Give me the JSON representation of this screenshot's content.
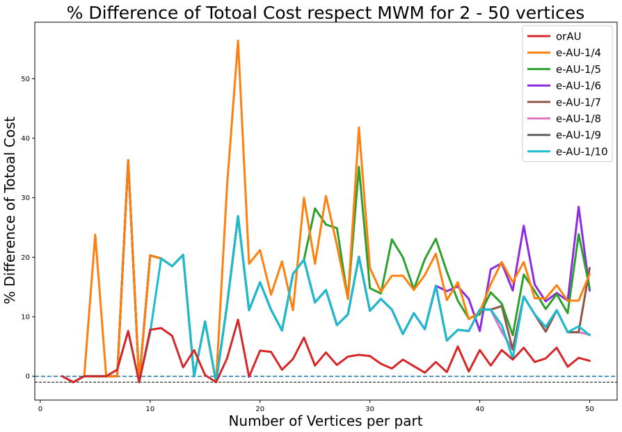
{
  "chart_data": {
    "type": "line",
    "title": "% Difference of Totoal Cost respect MWM for 2 - 50 vertices",
    "xlabel": "Number of Vertices per part",
    "ylabel": "% Difference of Totoal Cost",
    "xlim": [
      -0.5,
      52.5
    ],
    "ylim": [
      -4,
      59.5
    ],
    "xticks": [
      0,
      10,
      20,
      30,
      40,
      50
    ],
    "yticks": [
      0,
      10,
      20,
      30,
      40,
      50
    ],
    "grid": false,
    "legend_position": "top-right",
    "reference_lines": [
      {
        "y": 0,
        "style": "dashed",
        "color": "#1f77b4"
      },
      {
        "y": -1,
        "style": "dashed",
        "color": "#000000"
      }
    ],
    "x": [
      2,
      3,
      4,
      5,
      6,
      7,
      8,
      9,
      10,
      11,
      12,
      13,
      14,
      15,
      16,
      17,
      18,
      19,
      20,
      21,
      22,
      23,
      24,
      25,
      26,
      27,
      28,
      29,
      30,
      31,
      32,
      33,
      34,
      35,
      36,
      37,
      38,
      39,
      40,
      41,
      42,
      43,
      44,
      45,
      46,
      47,
      48,
      49,
      50
    ],
    "series": [
      {
        "name": "e-AU-1/9",
        "color": "#616161",
        "values": [
          0,
          -1,
          0,
          0,
          0,
          0,
          36.3,
          -1,
          20.3,
          19.8,
          18.5,
          20.4,
          0,
          9.2,
          -1,
          12,
          26.9,
          11.1,
          15.8,
          11.2,
          7.7,
          17.2,
          19.6,
          12.4,
          14.5,
          8.6,
          10.4,
          20.1,
          11,
          13,
          11.2,
          7.1,
          10.6,
          7.9,
          15.2,
          6,
          7.8,
          7.6,
          11.2,
          11.2,
          7.5,
          4.5,
          13.4,
          10.4,
          7.5,
          11.1,
          7.4,
          7.4,
          7
        ]
      },
      {
        "name": "e-AU-1/8",
        "color": "#e377c2",
        "values": [
          0,
          -1,
          0,
          0,
          0,
          0,
          36.3,
          -1,
          20.3,
          19.8,
          18.5,
          20.4,
          0,
          9.2,
          -1,
          12,
          26.9,
          11.1,
          15.8,
          11.2,
          7.7,
          17.2,
          19.6,
          12.4,
          14.5,
          8.6,
          10.4,
          20.1,
          11,
          13,
          11.2,
          7.1,
          10.6,
          7.9,
          15.2,
          6,
          7.8,
          7.6,
          11.2,
          11.2,
          7.5,
          4.5,
          13.4,
          10.4,
          7.5,
          11.1,
          7.4,
          7.4,
          7
        ]
      },
      {
        "name": "e-AU-1/7",
        "color": "#8c564b",
        "values": [
          0,
          -1,
          0,
          0,
          0,
          0,
          36.3,
          -1,
          20.3,
          19.8,
          18.5,
          20.4,
          0,
          9.2,
          -1,
          12,
          26.9,
          11.1,
          15.8,
          11.2,
          7.7,
          17.2,
          19.6,
          12.4,
          14.5,
          8.6,
          10.4,
          20.1,
          11,
          13,
          11.2,
          7.1,
          10.6,
          7.9,
          15.2,
          6,
          7.8,
          7.6,
          11.2,
          11.2,
          11.8,
          4.5,
          13.4,
          10.4,
          7.5,
          11.1,
          7.4,
          7.4,
          18.2
        ]
      },
      {
        "name": "e-AU-1/6",
        "color": "#8a2be2",
        "values": [
          0,
          -1,
          0,
          0,
          0,
          0,
          36.3,
          -1,
          20.3,
          19.8,
          18.5,
          20.4,
          0,
          9.2,
          -1,
          12,
          26.9,
          11.1,
          15.8,
          11.2,
          7.7,
          17.2,
          19.6,
          12.4,
          14.5,
          8.6,
          10.4,
          20.1,
          11,
          13,
          11.2,
          7.1,
          10.6,
          7.9,
          15.2,
          14.3,
          15.1,
          13,
          7.6,
          18,
          19,
          14.4,
          25.3,
          15.4,
          12.6,
          14,
          12.7,
          28.5,
          14.4
        ]
      },
      {
        "name": "e-AU-1/5",
        "color": "#2ca02c",
        "values": [
          0,
          -1,
          0,
          0,
          0,
          0,
          36.3,
          -1,
          20.3,
          19.8,
          18.5,
          20.4,
          0,
          9.2,
          -1,
          12,
          26.9,
          11.1,
          15.8,
          11.2,
          7.7,
          17.2,
          19.6,
          28.2,
          25.5,
          24.9,
          13,
          35.2,
          14.8,
          13.9,
          23,
          20,
          14.6,
          19.7,
          23.1,
          17.6,
          12.7,
          9.7,
          10.4,
          14.1,
          12.2,
          6.9,
          17.1,
          14.3,
          11.3,
          13.8,
          10.6,
          23.9,
          14.8
        ]
      },
      {
        "name": "e-AU-1/4",
        "color": "#ff7f0e",
        "values": [
          0,
          -1,
          0,
          23.8,
          0,
          0,
          36.3,
          -1,
          20.3,
          19.8,
          18.5,
          20.4,
          0,
          9.2,
          -1,
          32,
          56.4,
          18.9,
          21.2,
          13.7,
          19.3,
          11.1,
          30,
          18.9,
          30.3,
          22,
          13,
          41.8,
          18.2,
          14.2,
          16.9,
          16.9,
          14.5,
          17,
          20.6,
          12.8,
          15.8,
          9.6,
          10.8,
          15.5,
          19.2,
          15.8,
          19.2,
          13.1,
          13.1,
          15.3,
          12.7,
          12.7,
          17.2
        ]
      },
      {
        "name": "e-AU-1/10",
        "color": "#17becf",
        "values": [
          0,
          -1,
          0,
          0,
          0,
          1.1,
          7.6,
          -1,
          7.3,
          19.8,
          18.5,
          20.4,
          0,
          9.2,
          -1,
          12,
          26.9,
          11.1,
          15.8,
          11.2,
          7.7,
          17.2,
          19.6,
          12.4,
          14.5,
          8.6,
          10.4,
          20.1,
          11,
          13,
          11.2,
          7.1,
          10.6,
          7.9,
          15.2,
          6,
          7.8,
          7.6,
          11.2,
          11.2,
          8.6,
          3,
          13.4,
          10.4,
          8.3,
          11.1,
          7.4,
          8.4,
          6.9
        ]
      },
      {
        "name": "orAU",
        "color": "#d62728",
        "values": [
          0,
          -1,
          0,
          0,
          0,
          1.1,
          7.6,
          -1,
          7.8,
          8.1,
          6.8,
          1.5,
          4.4,
          0.2,
          -1,
          3,
          9.5,
          -0.1,
          4.3,
          4.1,
          1.1,
          2.9,
          6.5,
          1.8,
          4,
          1.9,
          3.3,
          3.6,
          3.4,
          2.1,
          1.3,
          2.8,
          1.7,
          0.6,
          2.4,
          0.7,
          5,
          0.8,
          4.4,
          1.8,
          4.4,
          2.8,
          4.8,
          2.4,
          3,
          4.8,
          1.6,
          3.1,
          2.6
        ]
      }
    ],
    "legend_order": [
      "orAU",
      "e-AU-1/4",
      "e-AU-1/5",
      "e-AU-1/6",
      "e-AU-1/7",
      "e-AU-1/8",
      "e-AU-1/9",
      "e-AU-1/10"
    ]
  }
}
